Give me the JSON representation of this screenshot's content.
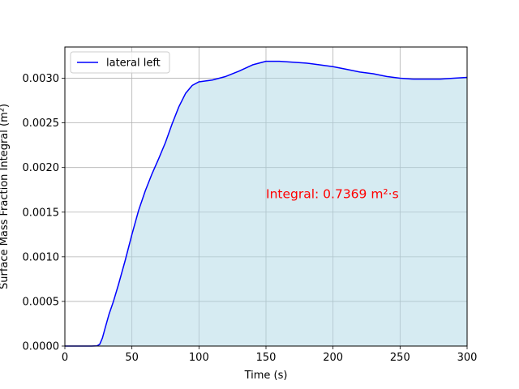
{
  "chart_data": {
    "type": "area",
    "title": "",
    "xlabel": "Time (s)",
    "ylabel": "Surface Mass Fraction Integral (m²)",
    "xlim": [
      0,
      300
    ],
    "ylim": [
      0,
      0.00335
    ],
    "xticks": [
      0,
      50,
      100,
      150,
      200,
      250,
      300
    ],
    "xtick_labels": [
      "0",
      "50",
      "100",
      "150",
      "200",
      "250",
      "300"
    ],
    "yticks": [
      0,
      0.0005,
      0.001,
      0.0015,
      0.002,
      0.0025,
      0.003
    ],
    "ytick_labels": [
      "0.0000",
      "0.0005",
      "0.0010",
      "0.0015",
      "0.0020",
      "0.0025",
      "0.0030"
    ],
    "grid": true,
    "legend_position": "upper-left",
    "series": [
      {
        "name": "lateral left",
        "color": "#0000ff",
        "fill_color": "#add8e6",
        "x": [
          0,
          10,
          20,
          24,
          26,
          28,
          30,
          33,
          36,
          40,
          45,
          50,
          55,
          60,
          65,
          70,
          75,
          80,
          85,
          90,
          95,
          100,
          105,
          110,
          120,
          130,
          140,
          150,
          160,
          170,
          180,
          190,
          200,
          210,
          220,
          230,
          240,
          250,
          260,
          270,
          280,
          290,
          300
        ],
        "y": [
          0,
          0,
          0,
          2e-06,
          2e-05,
          9e-05,
          0.0002,
          0.00036,
          0.00049,
          0.00069,
          0.00096,
          0.00125,
          0.00152,
          0.00174,
          0.00193,
          0.0021,
          0.00228,
          0.00249,
          0.00268,
          0.00283,
          0.00292,
          0.00296,
          0.00297,
          0.00298,
          0.00302,
          0.00308,
          0.00315,
          0.00319,
          0.00319,
          0.00318,
          0.00317,
          0.00315,
          0.00313,
          0.0031,
          0.00307,
          0.00305,
          0.00302,
          0.003,
          0.00299,
          0.00299,
          0.00299,
          0.003,
          0.00301
        ]
      }
    ],
    "annotation": {
      "text": "Integral: 0.7369 m²·s",
      "x": 150,
      "y": 0.0017,
      "color": "#ff0000"
    }
  }
}
